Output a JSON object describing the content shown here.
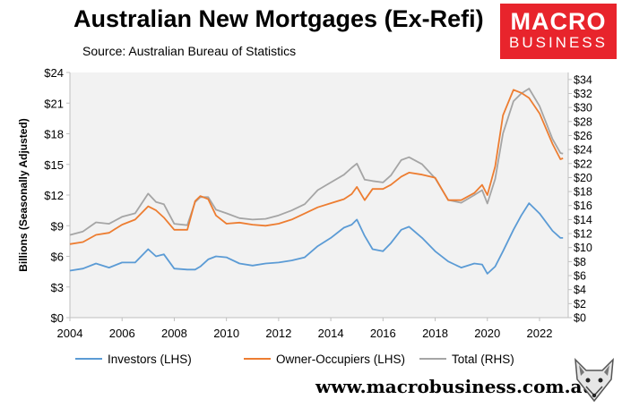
{
  "header": {
    "title": "Australian New Mortgages (Ex-Refi)",
    "subtitle": "Source: Australian Bureau of Statistics"
  },
  "logo": {
    "line1": "MACRO",
    "line2": "BUSINESS"
  },
  "footer": {
    "url": "www.macrobusiness.com.au"
  },
  "colors": {
    "investors": "#5b9bd5",
    "owner_occupiers": "#ed7d31",
    "total": "#a5a5a5",
    "plot_bg": "#f2f2f2",
    "logo_bg": "#e8242c"
  },
  "chart_data": {
    "type": "line",
    "title": "Australian New Mortgages (Ex-Refi)",
    "ylabel": "Billions (Seasonally Adjusted)",
    "xlim": [
      2004,
      2023.1
    ],
    "ylim_left": [
      0,
      24
    ],
    "ylim_right": [
      0,
      35
    ],
    "x_ticks": [
      "2004",
      "2006",
      "2008",
      "2010",
      "2012",
      "2014",
      "2016",
      "2018",
      "2020",
      "2022"
    ],
    "y_ticks_left": [
      "$0",
      "$3",
      "$6",
      "$9",
      "$12",
      "$15",
      "$18",
      "$21",
      "$24"
    ],
    "y_ticks_right": [
      "$0",
      "$2",
      "$4",
      "$6",
      "$8",
      "$10",
      "$12",
      "$14",
      "$16",
      "$18",
      "$20",
      "$22",
      "$24",
      "$26",
      "$28",
      "$30",
      "$32",
      "$34"
    ],
    "legend_position": "bottom",
    "grid": false,
    "x": [
      2004.0,
      2004.5,
      2005.0,
      2005.5,
      2006.0,
      2006.5,
      2007.0,
      2007.3,
      2007.6,
      2008.0,
      2008.5,
      2008.8,
      2009.0,
      2009.3,
      2009.6,
      2010.0,
      2010.5,
      2011.0,
      2011.5,
      2012.0,
      2012.5,
      2013.0,
      2013.5,
      2014.0,
      2014.5,
      2014.8,
      2015.0,
      2015.3,
      2015.6,
      2016.0,
      2016.3,
      2016.7,
      2017.0,
      2017.5,
      2018.0,
      2018.5,
      2019.0,
      2019.5,
      2019.8,
      2020.0,
      2020.3,
      2020.6,
      2021.0,
      2021.3,
      2021.6,
      2022.0,
      2022.5,
      2022.8,
      2022.9
    ],
    "series": [
      {
        "name": "Investors (LHS)",
        "axis": "left",
        "values": [
          4.6,
          4.8,
          5.3,
          4.9,
          5.4,
          5.4,
          6.7,
          6.0,
          6.2,
          4.8,
          4.7,
          4.7,
          5.0,
          5.7,
          6.0,
          5.9,
          5.3,
          5.1,
          5.3,
          5.4,
          5.6,
          5.9,
          7.0,
          7.8,
          8.8,
          9.1,
          9.6,
          8.0,
          6.7,
          6.5,
          7.3,
          8.6,
          8.9,
          7.8,
          6.5,
          5.5,
          4.9,
          5.3,
          5.2,
          4.3,
          5.0,
          6.5,
          8.6,
          10.0,
          11.2,
          10.2,
          8.5,
          7.8,
          7.8
        ]
      },
      {
        "name": "Owner-Occupiers (LHS)",
        "axis": "left",
        "values": [
          7.2,
          7.4,
          8.1,
          8.3,
          9.1,
          9.6,
          10.9,
          10.5,
          9.8,
          8.6,
          8.6,
          11.4,
          11.9,
          11.6,
          10.0,
          9.2,
          9.3,
          9.1,
          9.0,
          9.2,
          9.6,
          10.2,
          10.8,
          11.2,
          11.6,
          12.1,
          12.8,
          11.5,
          12.6,
          12.6,
          13.0,
          13.8,
          14.2,
          14.0,
          13.7,
          11.5,
          11.5,
          12.2,
          13.0,
          12.0,
          14.8,
          19.8,
          22.3,
          22.0,
          21.5,
          20.0,
          17.0,
          15.5,
          15.6
        ]
      },
      {
        "name": "Total (RHS)",
        "axis": "right",
        "values": [
          11.8,
          12.3,
          13.6,
          13.4,
          14.4,
          14.9,
          17.7,
          16.5,
          16.2,
          13.4,
          13.2,
          16.5,
          17.2,
          17.2,
          15.4,
          14.9,
          14.2,
          14.0,
          14.1,
          14.6,
          15.3,
          16.2,
          18.2,
          19.3,
          20.4,
          21.4,
          22.0,
          19.7,
          19.5,
          19.3,
          20.3,
          22.5,
          22.9,
          21.9,
          19.9,
          16.8,
          16.4,
          17.5,
          18.2,
          16.3,
          19.8,
          26.3,
          30.9,
          32.0,
          32.7,
          30.2,
          25.5,
          23.5,
          23.4
        ]
      }
    ]
  }
}
